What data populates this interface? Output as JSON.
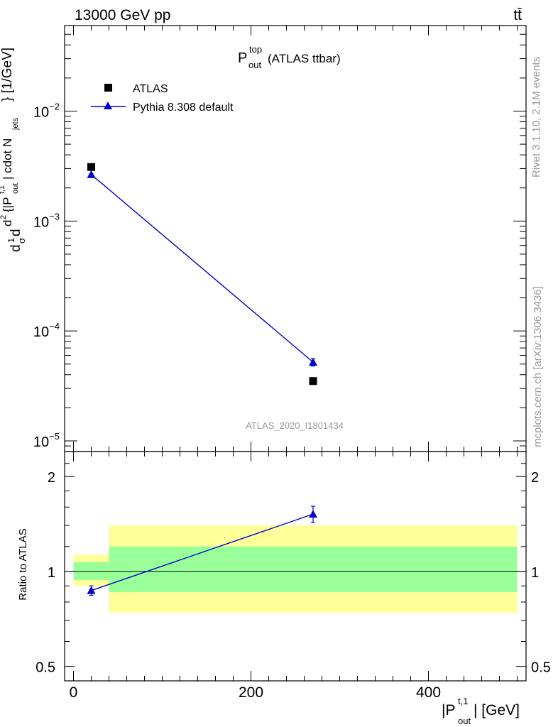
{
  "header": {
    "energy_label": "13000 GeV pp",
    "process_label": "tt̄"
  },
  "side_labels": {
    "rivet": "Rivet 3.1.10,  2.1M events",
    "mcplots": "mcplots.cern.ch [arXiv:1306.3436]"
  },
  "main_panel": {
    "title_main": "P",
    "title_sup": "top",
    "title_sub": "out",
    "title_rest": "(ATLAS ttbar)",
    "analysis_label": "ATLAS_2020_I1801434",
    "ylabel_parts": {
      "d1": "d",
      "frac1_num": "1",
      "frac1_den": "σ",
      "frac2_num": "d",
      "frac2_den": "σ",
      "d2": "d",
      "d3": "d",
      "ratio_sup": "fid",
      "rest": "{|P",
      "rest_sup": "t,1",
      "rest_sub": "out",
      "rest_mid": "| cdot N",
      "rest_sub2": "jets",
      "close": "} [1/GeV]",
      "d4": "d",
      "d4_sup": "2"
    },
    "yticks": [
      {
        "base": "10",
        "exp": "−5",
        "value": 1e-05
      },
      {
        "base": "10",
        "exp": "−4",
        "value": 0.0001
      },
      {
        "base": "10",
        "exp": "−3",
        "value": 0.001
      },
      {
        "base": "10",
        "exp": "−2",
        "value": 0.01
      }
    ],
    "legend": [
      {
        "label": "ATLAS",
        "marker": "square",
        "color": "#000000"
      },
      {
        "label": "Pythia 8.308 default",
        "marker": "triangle",
        "color": "#0000cc"
      }
    ]
  },
  "ratio_panel": {
    "ylabel": "Ratio to ATLAS",
    "yticks": [
      {
        "label": "0.5",
        "value": 0.5
      },
      {
        "label": "1",
        "value": 1
      },
      {
        "label": "2",
        "value": 2
      }
    ]
  },
  "x_axis": {
    "label_pre": "|P",
    "label_sup": "t,1",
    "label_sub": "out",
    "label_post": "| [GeV]",
    "ticks": [
      {
        "label": "0",
        "value": 0
      },
      {
        "label": "200",
        "value": 200
      },
      {
        "label": "400",
        "value": 400
      }
    ]
  },
  "chart_data": {
    "type": "scatter",
    "xlim": [
      -10,
      510
    ],
    "main_ylim": [
      8e-06,
      0.06
    ],
    "main_yscale": "log",
    "ratio_ylim": [
      0.45,
      2.4
    ],
    "ratio_yscale": "log",
    "series": [
      {
        "name": "ATLAS",
        "points": [
          {
            "x": 20,
            "y": 0.0031
          },
          {
            "x": 270,
            "y": 3.5e-05
          }
        ]
      },
      {
        "name": "Pythia 8.308 default",
        "points": [
          {
            "x": 20,
            "y": 0.00265,
            "yerr": 4e-05
          },
          {
            "x": 270,
            "y": 5.2e-05,
            "yerr": 4e-06
          }
        ],
        "ratio": [
          {
            "x": 20,
            "y": 0.87,
            "yerr": 0.03
          },
          {
            "x": 270,
            "y": 1.52,
            "yerr": 0.09
          }
        ]
      }
    ],
    "bands": [
      {
        "xmin": 0,
        "xmax": 40,
        "inner": [
          0.94,
          1.07
        ],
        "outer": [
          0.9,
          1.13
        ]
      },
      {
        "xmin": 40,
        "xmax": 500,
        "inner": [
          0.86,
          1.2
        ],
        "outer": [
          0.74,
          1.4
        ]
      }
    ],
    "colors": {
      "inner_band": "#99ff99",
      "outer_band": "#ffff99",
      "mc": "#0000cc",
      "data": "#000000"
    }
  }
}
